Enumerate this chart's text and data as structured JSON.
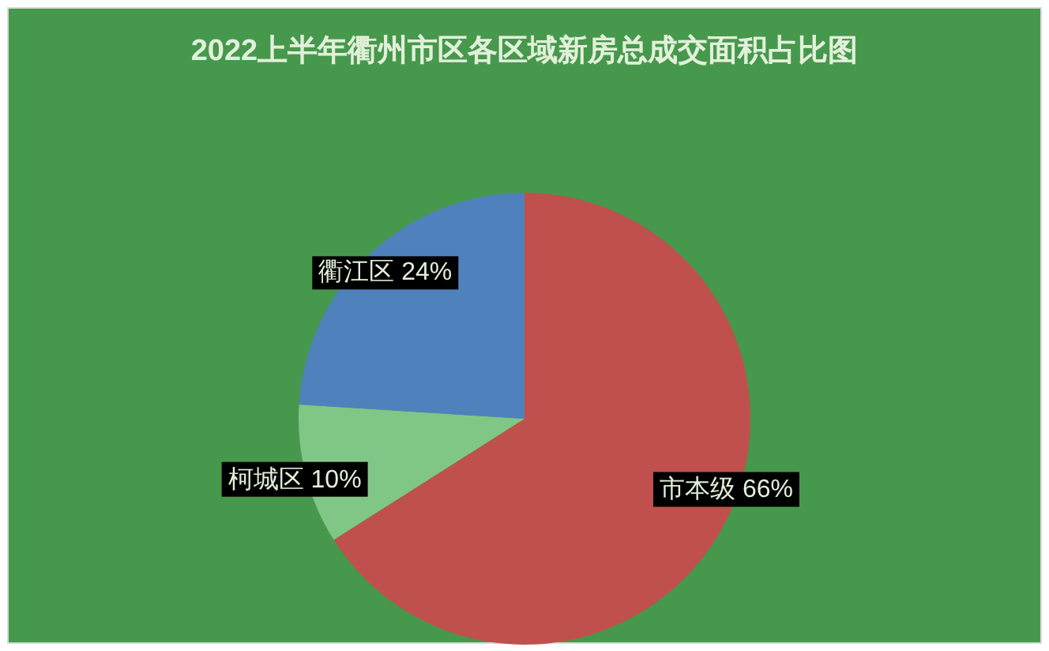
{
  "chart_data": {
    "type": "pie",
    "title": "2022上半年衢州市区各区域新房总成交面积占比图",
    "categories": [
      "市本级",
      "柯城区",
      "衢江区"
    ],
    "values": [
      66,
      10,
      24
    ],
    "colors": [
      "#c0504d",
      "#80c686",
      "#4f81bd"
    ],
    "value_labels": [
      "66%",
      "10%",
      "24%"
    ]
  }
}
